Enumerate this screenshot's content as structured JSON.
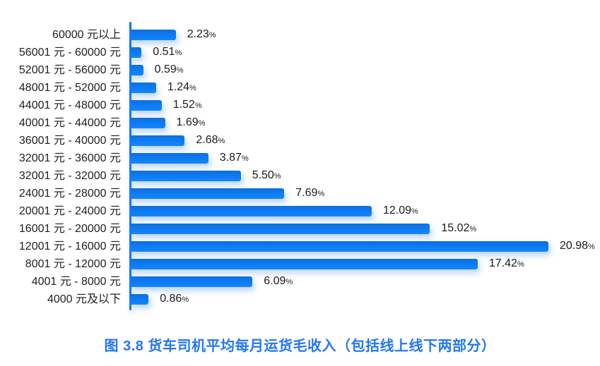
{
  "chart_data": {
    "type": "bar",
    "orientation": "horizontal",
    "title": "图 3.8  货车司机平均每月运货毛收入（包括线上线下两部分）",
    "xlabel": "",
    "ylabel": "",
    "value_suffix": "%",
    "xlim": [
      0,
      21
    ],
    "grid": false,
    "legend": null,
    "categories": [
      "60000 元以上",
      "56001 元 - 60000 元",
      "52001 元 - 56000 元",
      "48001 元 - 52000 元",
      "44001 元 - 48000 元",
      "40001 元 - 44000 元",
      "36001 元 - 40000 元",
      "32001 元 - 36000 元",
      "32001 元 - 32000 元",
      "24001 元 - 28000 元",
      "20001 元 - 24000 元",
      "16001 元 - 20000 元",
      "12001 元 - 16000 元",
      "8001 元 - 12000 元",
      "4001 元 - 8000 元",
      "4000 元及以下"
    ],
    "values": [
      2.23,
      0.51,
      0.59,
      1.24,
      1.52,
      1.69,
      2.68,
      3.87,
      5.5,
      7.69,
      12.09,
      15.02,
      20.98,
      17.42,
      6.09,
      0.86
    ],
    "value_labels": [
      "2.23",
      "0.51",
      "0.59",
      "1.24",
      "1.52",
      "1.69",
      "2.68",
      "3.87",
      "5.50",
      "7.69",
      "12.09",
      "15.02",
      "20.98",
      "17.42",
      "6.09",
      "0.86"
    ],
    "colors": {
      "bar_gradient_top": "#0a6fe2",
      "bar_gradient_bottom": "#1486ff",
      "axis_line": "#1277ee",
      "title": "#2577f3",
      "category_label": "#1f1f1f",
      "value_label": "#1b1b1b"
    }
  }
}
